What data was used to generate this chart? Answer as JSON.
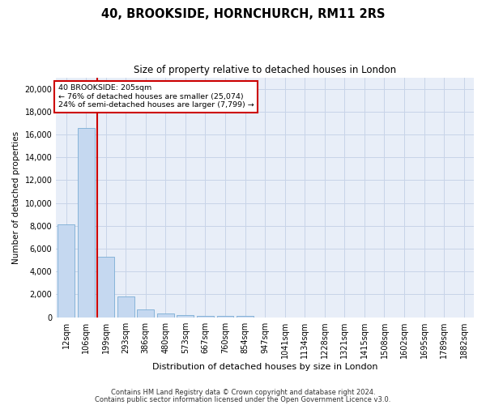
{
  "title": "40, BROOKSIDE, HORNCHURCH, RM11 2RS",
  "subtitle": "Size of property relative to detached houses in London",
  "xlabel": "Distribution of detached houses by size in London",
  "ylabel": "Number of detached properties",
  "footer_line1": "Contains HM Land Registry data © Crown copyright and database right 2024.",
  "footer_line2": "Contains public sector information licensed under the Open Government Licence v3.0.",
  "bar_color": "#c5d8f0",
  "bar_edge_color": "#7aadd4",
  "vline_color": "#cc0000",
  "grid_color": "#c8d4e8",
  "background_color": "#e8eef8",
  "categories": [
    "12sqm",
    "106sqm",
    "199sqm",
    "293sqm",
    "386sqm",
    "480sqm",
    "573sqm",
    "667sqm",
    "760sqm",
    "854sqm",
    "947sqm",
    "1041sqm",
    "1134sqm",
    "1228sqm",
    "1321sqm",
    "1415sqm",
    "1508sqm",
    "1602sqm",
    "1695sqm",
    "1789sqm",
    "1882sqm"
  ],
  "values": [
    8100,
    16600,
    5300,
    1850,
    650,
    320,
    195,
    145,
    115,
    95,
    0,
    0,
    0,
    0,
    0,
    0,
    0,
    0,
    0,
    0,
    0
  ],
  "ylim": [
    0,
    21000
  ],
  "yticks": [
    0,
    2000,
    4000,
    6000,
    8000,
    10000,
    12000,
    14000,
    16000,
    18000,
    20000
  ],
  "vline_position": 1.575,
  "annotation_line1": "40 BROOKSIDE: 205sqm",
  "annotation_line2": "← 76% of detached houses are smaller (25,074)",
  "annotation_line3": "24% of semi-detached houses are larger (7,799) →"
}
